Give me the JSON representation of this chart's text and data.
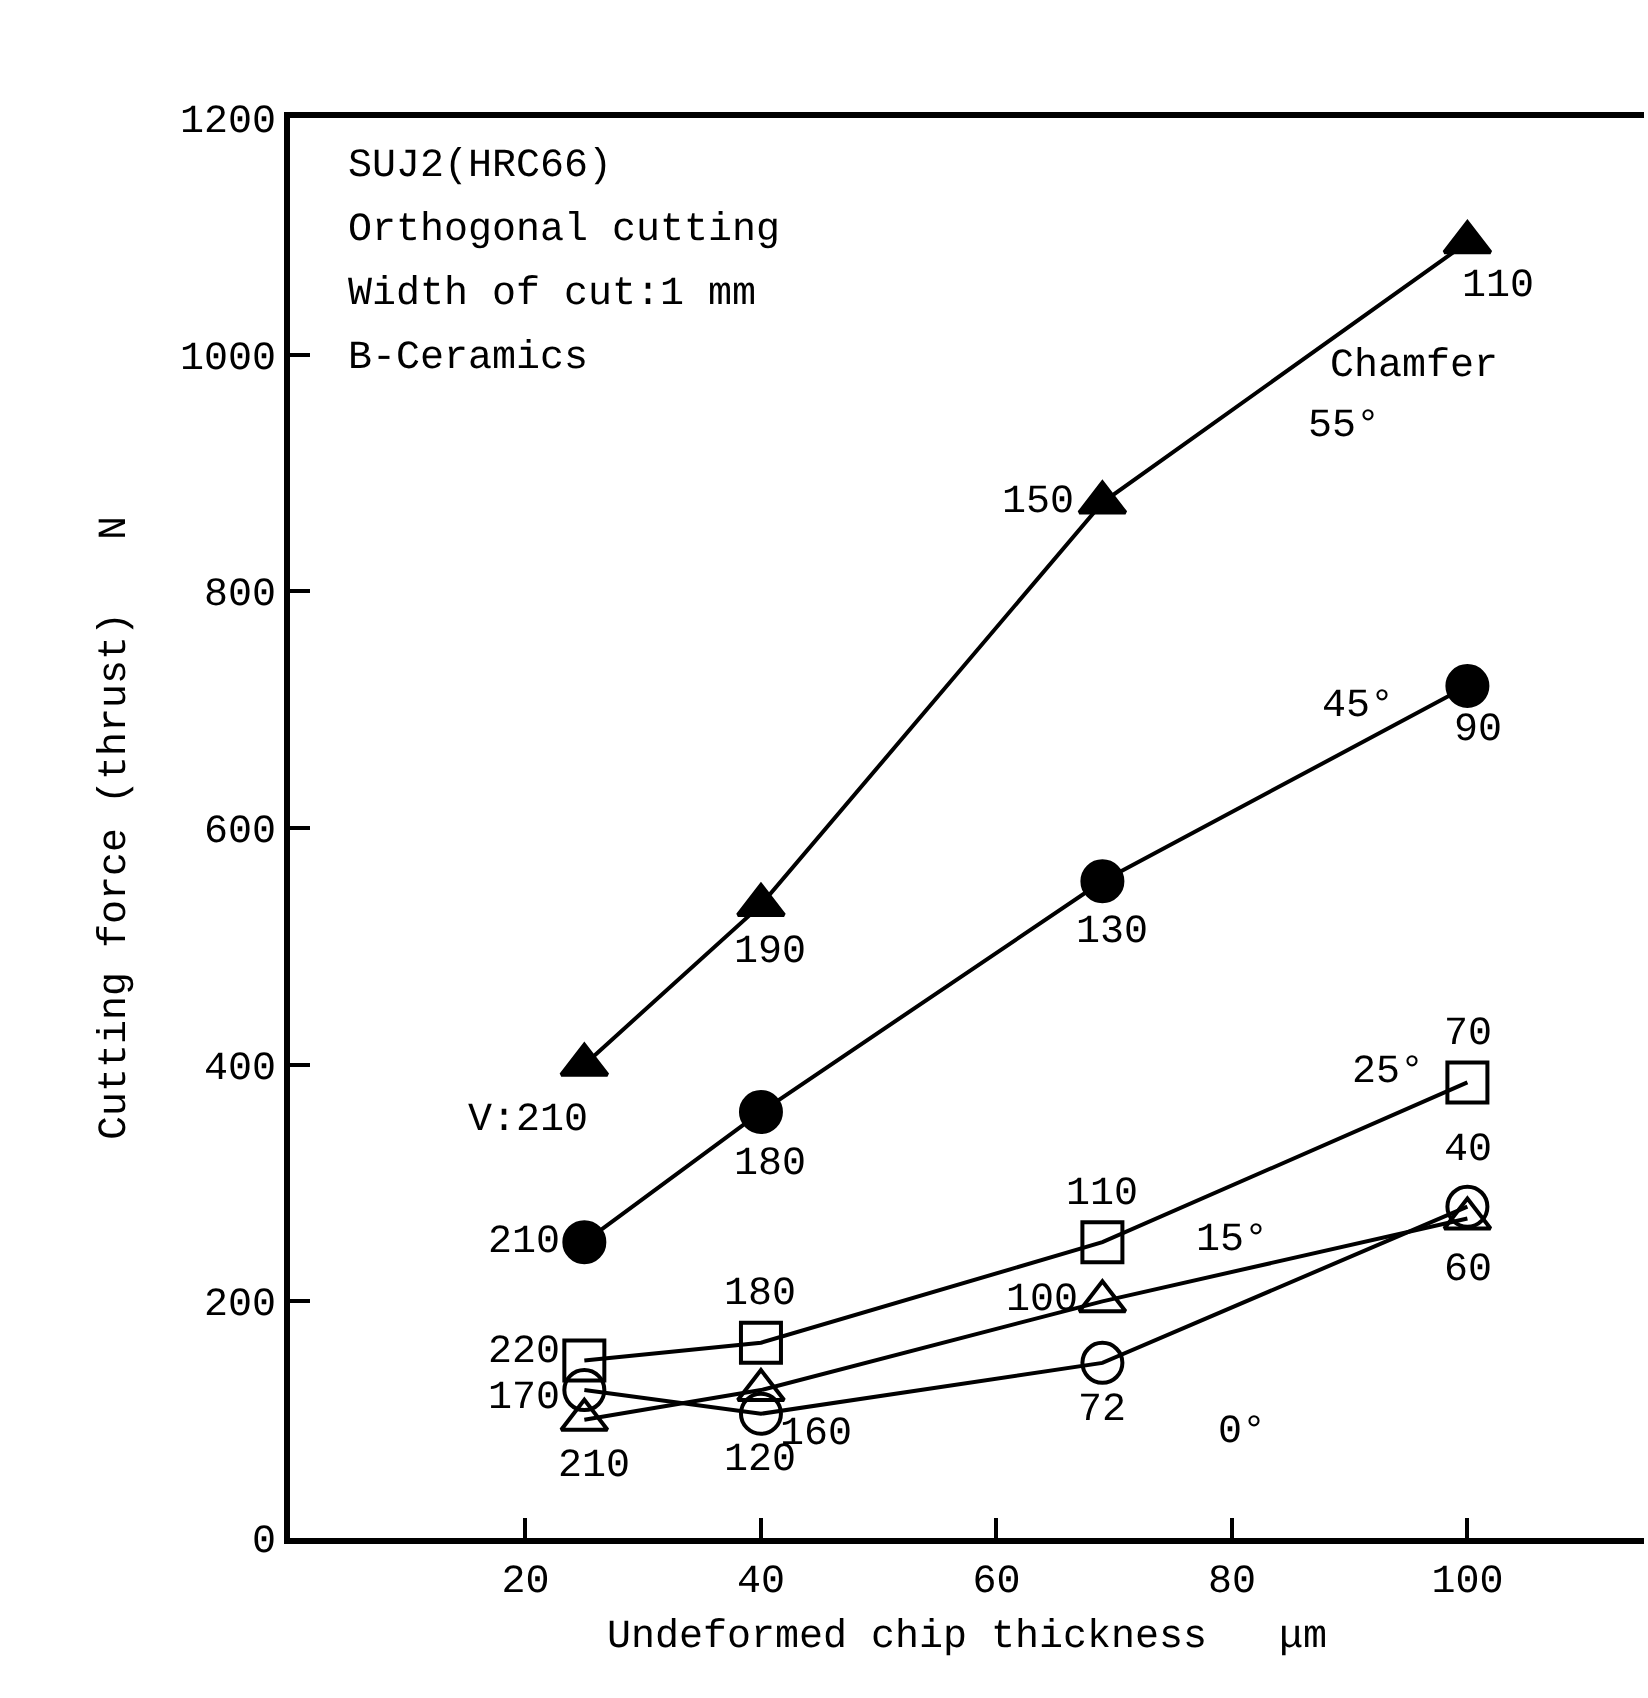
{
  "chart_data": {
    "type": "line",
    "xlabel": "Undeformed chip thickness   μm",
    "ylabel": "Cutting force (thrust)   N",
    "x": [
      25,
      40,
      69,
      100
    ],
    "xlim": [
      0,
      115
    ],
    "xticks": [
      20,
      40,
      60,
      80,
      100
    ],
    "ylim": [
      0,
      1200
    ],
    "yticks": [
      0,
      200,
      400,
      600,
      800,
      1000,
      1200
    ],
    "grid": false,
    "legend": false,
    "line_style": "solid",
    "series": [
      {
        "name": "55°",
        "color": "#000000",
        "marker": "triangle",
        "values": [
          400,
          535,
          875,
          1095
        ]
      },
      {
        "name": "45°",
        "color": "#000000",
        "marker": "circle",
        "values": [
          250,
          360,
          555,
          720
        ]
      },
      {
        "name": "25°",
        "color": "#000000",
        "marker": "square",
        "values": [
          150,
          165,
          250,
          385
        ]
      },
      {
        "name": "15°",
        "color": "#000000",
        "marker": "triangle",
        "values": [
          100,
          125,
          200,
          270
        ]
      },
      {
        "name": "0°",
        "color": "#000000",
        "marker": "circle",
        "values": [
          125,
          105,
          148,
          280
        ]
      }
    ],
    "annotations": [
      "SUJ2(HRC66)",
      "Orthogonal cutting",
      "Width of cut:1 mm",
      "B-Ceramics",
      "Chamfer",
      {
        "text": "V:210",
        "x": 25,
        "y": 400
      },
      {
        "text": "190",
        "x": 40,
        "y": 535
      },
      {
        "text": "150",
        "x": 69,
        "y": 875
      },
      {
        "text": "110",
        "x": 100,
        "y": 1095
      },
      {
        "text": "210",
        "x": 25,
        "y": 250
      },
      {
        "text": "180",
        "x": 40,
        "y": 360
      },
      {
        "text": "130",
        "x": 69,
        "y": 555
      },
      {
        "text": "90",
        "x": 100,
        "y": 720
      },
      {
        "text": "220",
        "x": 25,
        "y": 150
      },
      {
        "text": "180",
        "x": 40,
        "y": 165
      },
      {
        "text": "110",
        "x": 69,
        "y": 250
      },
      {
        "text": "70",
        "x": 100,
        "y": 385
      },
      {
        "text": "210",
        "x": 25,
        "y": 100
      },
      {
        "text": "160",
        "x": 40,
        "y": 125
      },
      {
        "text": "100",
        "x": 69,
        "y": 200
      },
      {
        "text": "60",
        "x": 100,
        "y": 270
      },
      {
        "text": "170",
        "x": 25,
        "y": 125
      },
      {
        "text": "120",
        "x": 40,
        "y": 105
      },
      {
        "text": "72",
        "x": 69,
        "y": 148
      },
      {
        "text": "40",
        "x": 100,
        "y": 280
      }
    ]
  }
}
